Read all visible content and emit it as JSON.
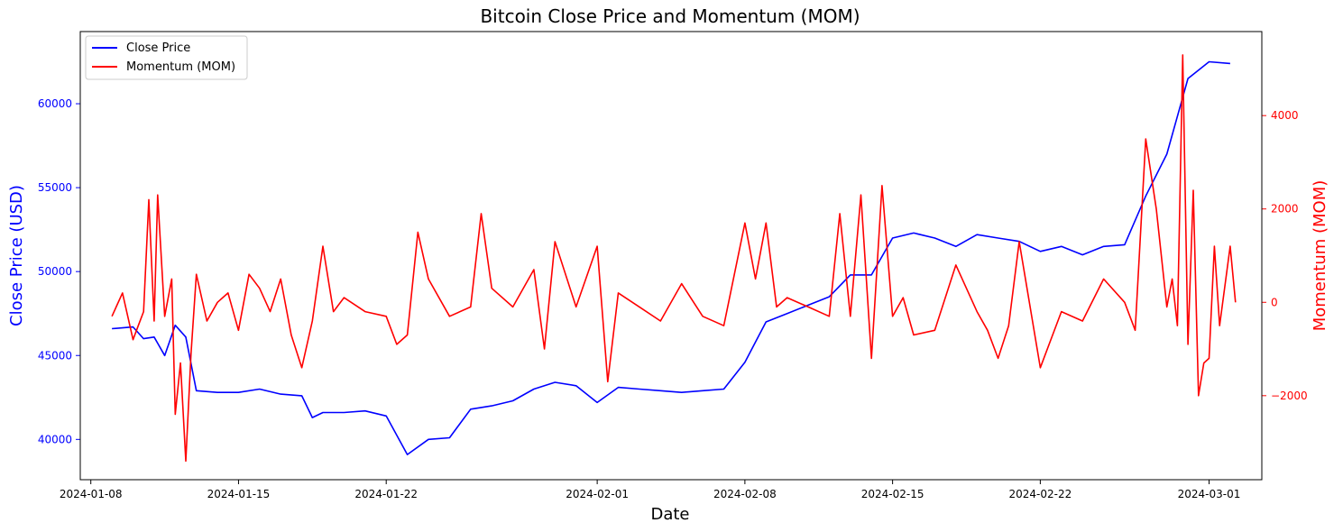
{
  "chart_data": {
    "type": "line",
    "title": "Bitcoin Close Price and Momentum (MOM)",
    "xlabel": "Date",
    "ylabel_left": "Close Price (USD)",
    "ylabel_right": "Momentum (MOM)",
    "x_range": [
      "2024-01-07T12:00",
      "2024-03-03T12:00"
    ],
    "x_ticks": [
      "2024-01-08",
      "2024-01-15",
      "2024-01-22",
      "2024-02-01",
      "2024-02-08",
      "2024-02-15",
      "2024-02-22",
      "2024-03-01"
    ],
    "ylim_left": [
      37600,
      64300
    ],
    "yticks_left": [
      40000,
      45000,
      50000,
      55000,
      60000
    ],
    "ylim_right": [
      -3800,
      5800
    ],
    "yticks_right": [
      -2000,
      0,
      2000,
      4000
    ],
    "colors": {
      "left_axis": "#0000ff",
      "right_axis": "#ff0000",
      "close": "#0000ff",
      "mom": "#ff0000"
    },
    "grid": false,
    "legend": {
      "position": "top-left",
      "entries": [
        "Close Price",
        "Momentum (MOM)"
      ]
    },
    "series": [
      {
        "name": "Close Price",
        "axis": "left",
        "x": [
          "2024-01-09",
          "2024-01-10",
          "2024-01-10T12:00",
          "2024-01-11",
          "2024-01-11T12:00",
          "2024-01-12",
          "2024-01-12T12:00",
          "2024-01-13",
          "2024-01-14",
          "2024-01-15",
          "2024-01-16",
          "2024-01-17",
          "2024-01-18",
          "2024-01-18T12:00",
          "2024-01-19",
          "2024-01-20",
          "2024-01-21",
          "2024-01-22",
          "2024-01-23",
          "2024-01-24",
          "2024-01-25",
          "2024-01-26",
          "2024-01-27",
          "2024-01-28",
          "2024-01-29",
          "2024-01-30",
          "2024-01-31",
          "2024-02-01",
          "2024-02-02",
          "2024-02-03",
          "2024-02-04",
          "2024-02-05",
          "2024-02-06",
          "2024-02-07",
          "2024-02-08",
          "2024-02-09",
          "2024-02-10",
          "2024-02-11",
          "2024-02-12",
          "2024-02-13",
          "2024-02-14",
          "2024-02-15",
          "2024-02-16",
          "2024-02-17",
          "2024-02-18",
          "2024-02-19",
          "2024-02-20",
          "2024-02-21",
          "2024-02-22",
          "2024-02-23",
          "2024-02-24",
          "2024-02-25",
          "2024-02-26",
          "2024-02-27",
          "2024-02-28",
          "2024-02-29",
          "2024-03-01",
          "2024-03-02"
        ],
        "values": [
          46600,
          46700,
          46000,
          46100,
          45000,
          46800,
          46100,
          42900,
          42800,
          42800,
          43000,
          42700,
          42600,
          41300,
          41600,
          41600,
          41700,
          41400,
          39100,
          40000,
          40100,
          41800,
          42000,
          42300,
          43000,
          43400,
          43200,
          42200,
          43100,
          43000,
          42900,
          42800,
          42900,
          43000,
          44600,
          47000,
          47500,
          48000,
          48500,
          49800,
          49800,
          52000,
          52300,
          52000,
          51500,
          52200,
          52000,
          51800,
          51200,
          51500,
          51000,
          51500,
          51600,
          54500,
          57000,
          61500,
          62500,
          62400
        ]
      },
      {
        "name": "Momentum (MOM)",
        "axis": "right",
        "x": [
          "2024-01-09",
          "2024-01-09T12:00",
          "2024-01-10",
          "2024-01-10T06:00",
          "2024-01-10T12:00",
          "2024-01-10T18:00",
          "2024-01-11",
          "2024-01-11T04:00",
          "2024-01-11T12:00",
          "2024-01-11T20:00",
          "2024-01-12",
          "2024-01-12T06:00",
          "2024-01-12T12:00",
          "2024-01-12T18:00",
          "2024-01-13",
          "2024-01-13T12:00",
          "2024-01-14",
          "2024-01-14T12:00",
          "2024-01-15",
          "2024-01-15T12:00",
          "2024-01-16",
          "2024-01-16T12:00",
          "2024-01-17",
          "2024-01-17T12:00",
          "2024-01-18",
          "2024-01-18T12:00",
          "2024-01-19",
          "2024-01-19T12:00",
          "2024-01-20",
          "2024-01-21",
          "2024-01-22",
          "2024-01-22T12:00",
          "2024-01-23",
          "2024-01-23T12:00",
          "2024-01-24",
          "2024-01-25",
          "2024-01-26",
          "2024-01-26T12:00",
          "2024-01-27",
          "2024-01-28",
          "2024-01-29",
          "2024-01-29T12:00",
          "2024-01-30",
          "2024-01-31",
          "2024-02-01",
          "2024-02-01T12:00",
          "2024-02-02",
          "2024-02-03",
          "2024-02-04",
          "2024-02-05",
          "2024-02-06",
          "2024-02-07",
          "2024-02-08",
          "2024-02-08T12:00",
          "2024-02-09",
          "2024-02-09T12:00",
          "2024-02-10",
          "2024-02-11",
          "2024-02-12",
          "2024-02-12T12:00",
          "2024-02-13",
          "2024-02-13T12:00",
          "2024-02-14",
          "2024-02-14T12:00",
          "2024-02-15",
          "2024-02-15T12:00",
          "2024-02-16",
          "2024-02-17",
          "2024-02-18",
          "2024-02-19",
          "2024-02-19T12:00",
          "2024-02-20",
          "2024-02-20T12:00",
          "2024-02-21",
          "2024-02-22",
          "2024-02-23",
          "2024-02-24",
          "2024-02-25",
          "2024-02-26",
          "2024-02-26T12:00",
          "2024-02-27",
          "2024-02-27T12:00",
          "2024-02-28",
          "2024-02-28T06:00",
          "2024-02-28T12:00",
          "2024-02-28T18:00",
          "2024-02-29",
          "2024-02-29T06:00",
          "2024-02-29T12:00",
          "2024-02-29T18:00",
          "2024-03-01",
          "2024-03-01T06:00",
          "2024-03-01T12:00",
          "2024-03-02",
          "2024-03-02T06:00"
        ],
        "values": [
          -300,
          200,
          -800,
          -500,
          -200,
          2200,
          -400,
          2300,
          -300,
          500,
          -2400,
          -1300,
          -3400,
          -1100,
          600,
          -400,
          0,
          200,
          -600,
          600,
          300,
          -200,
          500,
          -700,
          -1400,
          -400,
          1200,
          -200,
          100,
          -200,
          -300,
          -900,
          -700,
          1500,
          500,
          -300,
          -100,
          1900,
          300,
          -100,
          700,
          -1000,
          1300,
          -100,
          1200,
          -1700,
          200,
          -100,
          -400,
          400,
          -300,
          -500,
          1700,
          500,
          1700,
          -100,
          100,
          -100,
          -300,
          1900,
          -300,
          2300,
          -1200,
          2500,
          -300,
          100,
          -700,
          -600,
          800,
          -200,
          -600,
          -1200,
          -500,
          1300,
          -1400,
          -200,
          -400,
          500,
          0,
          -600,
          3500,
          2000,
          -100,
          500,
          -500,
          5300,
          -900,
          2400,
          -2000,
          -1300,
          -1200,
          1200,
          -500,
          1200,
          0
        ]
      }
    ]
  }
}
